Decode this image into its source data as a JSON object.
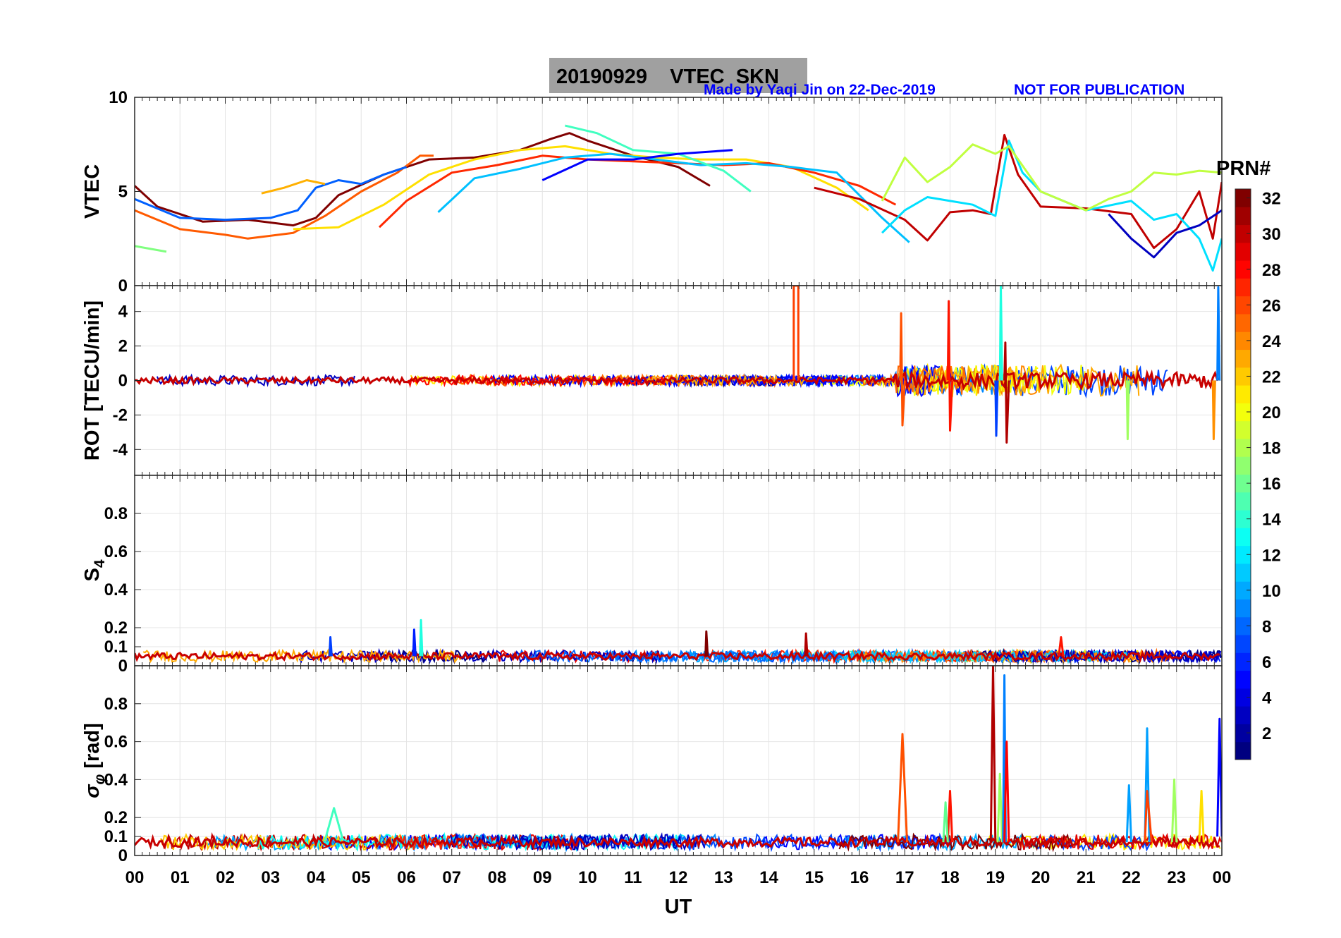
{
  "header": {
    "title": "20190929    VTEC  SKN",
    "credit": "Made by Yaqi Jin on 22-Dec-2019",
    "notice": "NOT FOR PUBLICATION"
  },
  "colorbar": {
    "label": "PRN#",
    "ticks": [
      "2",
      "4",
      "6",
      "8",
      "10",
      "12",
      "14",
      "16",
      "18",
      "20",
      "22",
      "24",
      "26",
      "28",
      "30",
      "32"
    ],
    "range": [
      1,
      32
    ],
    "colormap": "jet"
  },
  "x_axis": {
    "label": "UT",
    "ticks": [
      "00",
      "01",
      "02",
      "03",
      "04",
      "05",
      "06",
      "07",
      "08",
      "09",
      "10",
      "11",
      "12",
      "13",
      "14",
      "15",
      "16",
      "17",
      "18",
      "19",
      "20",
      "21",
      "22",
      "23",
      "00"
    ]
  },
  "chart_data": [
    {
      "type": "line",
      "panel": "vtec",
      "ylabel": "VTEC",
      "ylim": [
        0,
        10
      ],
      "yticks": [
        "0",
        "5",
        "10"
      ],
      "grid": true,
      "x_unit": "hours UT",
      "series": [
        {
          "prn": 32,
          "color": "#800000",
          "x": [
            0,
            0.5,
            1.5,
            2.5,
            3.5,
            4,
            4.5,
            5.5,
            6.5,
            7.5,
            8.5,
            9.2,
            9.6,
            10,
            11,
            12,
            12.7
          ],
          "y": [
            5.3,
            4.2,
            3.4,
            3.5,
            3.2,
            3.6,
            4.8,
            5.9,
            6.7,
            6.8,
            7.2,
            7.8,
            8.1,
            7.7,
            6.9,
            6.3,
            5.3
          ]
        },
        {
          "prn": 24,
          "color": "#ff5a00",
          "x": [
            0,
            1,
            2,
            2.5,
            3.5,
            4.2,
            5,
            5.8,
            6.3,
            6.6
          ],
          "y": [
            4.0,
            3.0,
            2.7,
            2.5,
            2.8,
            3.7,
            5.0,
            6.0,
            6.9,
            6.9
          ]
        },
        {
          "prn": 8,
          "color": "#0060ff",
          "x": [
            0,
            1,
            2,
            3,
            3.6,
            4,
            4.5,
            5,
            5.5,
            6
          ],
          "y": [
            4.6,
            3.6,
            3.5,
            3.6,
            4.0,
            5.2,
            5.6,
            5.4,
            5.9,
            6.3
          ]
        },
        {
          "prn": 17,
          "color": "#80ff80",
          "x": [
            0,
            0.7
          ],
          "y": [
            2.1,
            1.8
          ]
        },
        {
          "prn": 22,
          "color": "#ffb000",
          "x": [
            2.8,
            3.3,
            3.8,
            4.2
          ],
          "y": [
            4.9,
            5.2,
            5.6,
            5.4
          ]
        },
        {
          "prn": 20,
          "color": "#ffe000",
          "x": [
            3.5,
            4.5,
            5.5,
            6.5,
            7.5,
            8.5,
            9.5,
            10.5,
            11.5,
            12.5,
            13.5,
            14.5,
            15.5,
            16.2
          ],
          "y": [
            3.0,
            3.1,
            4.3,
            5.9,
            6.7,
            7.2,
            7.4,
            7.0,
            6.8,
            6.7,
            6.7,
            6.3,
            5.2,
            4.0
          ]
        },
        {
          "prn": 27,
          "color": "#ff2800",
          "x": [
            5.4,
            6,
            7,
            8,
            9,
            10,
            11,
            12,
            13,
            14,
            15,
            16,
            16.8
          ],
          "y": [
            3.1,
            4.5,
            6.0,
            6.4,
            6.9,
            6.7,
            6.6,
            6.5,
            6.4,
            6.5,
            6.0,
            5.3,
            4.3
          ]
        },
        {
          "prn": 11,
          "color": "#00c0ff",
          "x": [
            6.7,
            7.5,
            8.5,
            9.5,
            10.5,
            11.5,
            12.5,
            13.5,
            14.5,
            15.5,
            16.5,
            17.1
          ],
          "y": [
            3.9,
            5.7,
            6.2,
            6.8,
            7.0,
            6.7,
            6.4,
            6.5,
            6.3,
            6.0,
            3.6,
            2.3
          ]
        },
        {
          "prn": 14,
          "color": "#40ffc0",
          "x": [
            9.5,
            10.2,
            11,
            12,
            13,
            13.6
          ],
          "y": [
            8.5,
            8.1,
            7.2,
            7.0,
            6.1,
            5.0
          ]
        },
        {
          "prn": 5,
          "color": "#0000ff",
          "x": [
            9,
            10,
            11,
            12,
            13.2
          ],
          "y": [
            5.6,
            6.7,
            6.7,
            7.0,
            7.2
          ]
        },
        {
          "prn": 30,
          "color": "#c00000",
          "x": [
            15,
            16,
            17,
            17.5,
            18,
            18.5,
            18.9,
            19.2,
            19.5,
            20,
            21,
            22,
            22.5,
            23,
            23.5,
            23.8,
            24
          ],
          "y": [
            5.2,
            4.6,
            3.5,
            2.4,
            3.9,
            4.0,
            3.8,
            8.0,
            5.9,
            4.2,
            4.1,
            3.8,
            2.0,
            3.0,
            5.0,
            2.5,
            5.5
          ]
        },
        {
          "prn": 12,
          "color": "#00e0ff",
          "x": [
            16.5,
            17,
            17.5,
            18,
            18.5,
            19,
            19.3,
            19.6,
            20,
            21,
            22,
            22.5,
            23,
            23.5,
            23.8,
            24
          ],
          "y": [
            2.8,
            4.0,
            4.7,
            4.5,
            4.3,
            3.7,
            7.7,
            6.0,
            5.0,
            4.0,
            4.5,
            3.5,
            3.8,
            2.5,
            0.8,
            2.5
          ]
        },
        {
          "prn": 19,
          "color": "#c0ff40",
          "x": [
            16.5,
            17,
            17.5,
            18,
            18.5,
            19,
            19.3,
            20,
            20.5,
            21,
            21.5,
            22,
            22.5,
            23,
            23.5,
            24
          ],
          "y": [
            4.5,
            6.8,
            5.5,
            6.3,
            7.5,
            7.0,
            7.4,
            5.0,
            4.5,
            4.0,
            4.6,
            5.0,
            6.0,
            5.9,
            6.1,
            6.0
          ]
        },
        {
          "prn": 3,
          "color": "#0000c0",
          "x": [
            21.5,
            22,
            22.5,
            23,
            23.5,
            24
          ],
          "y": [
            3.8,
            2.5,
            1.5,
            2.8,
            3.2,
            4.0
          ]
        }
      ]
    },
    {
      "type": "line",
      "panel": "rot",
      "ylabel": "ROT [TECU/min]",
      "ylim": [
        -5.5,
        5.5
      ],
      "yticks": [
        "-4",
        "-2",
        "0",
        "2",
        "4"
      ],
      "grid": true,
      "x_unit": "hours UT",
      "baseline": 0,
      "quiet_noise_amplitude": 0.3,
      "active_interval": [
        16.8,
        24
      ],
      "series": [
        {
          "prn": 26,
          "color": "#ff4000",
          "x": [
            14.55,
            14.55,
            14.65,
            14.65
          ],
          "y": [
            0,
            5.5,
            5.5,
            0
          ]
        },
        {
          "prn": 25,
          "color": "#ff5000",
          "x": [
            16.9,
            16.92,
            16.95,
            17.0
          ],
          "y": [
            0,
            3.9,
            -2.6,
            0
          ]
        },
        {
          "prn": 28,
          "color": "#ff1400",
          "x": [
            17.95,
            17.97,
            18.0,
            18.05
          ],
          "y": [
            0,
            4.6,
            -2.9,
            0
          ]
        },
        {
          "prn": 13,
          "color": "#20ffe0",
          "x": [
            19.1,
            19.12,
            19.15
          ],
          "y": [
            0,
            5.5,
            0
          ]
        },
        {
          "prn": 7,
          "color": "#0040ff",
          "x": [
            19.0,
            19.02,
            19.05
          ],
          "y": [
            0,
            -3.2,
            0
          ]
        },
        {
          "prn": 31,
          "color": "#b00000",
          "x": [
            19.2,
            19.22,
            19.25,
            19.3
          ],
          "y": [
            0,
            2.2,
            -3.6,
            0
          ]
        },
        {
          "prn": 18,
          "color": "#a0ff60",
          "x": [
            21.9,
            21.92,
            21.95
          ],
          "y": [
            0,
            -3.4,
            0
          ]
        },
        {
          "prn": 9,
          "color": "#0080ff",
          "x": [
            23.9,
            23.92,
            23.95
          ],
          "y": [
            0,
            5.4,
            0
          ]
        },
        {
          "prn": 23,
          "color": "#ff9000",
          "x": [
            23.8,
            23.82,
            23.85
          ],
          "y": [
            0,
            -3.4,
            0
          ]
        }
      ]
    },
    {
      "type": "line",
      "panel": "s4",
      "ylabel": "S4",
      "ylim": [
        0,
        1
      ],
      "yticks": [
        "0",
        "0.1",
        "0.2",
        "0.4",
        "0.6",
        "0.8"
      ],
      "grid": true,
      "x_unit": "hours UT",
      "baseline": 0.05,
      "quiet_noise_amplitude": 0.03,
      "series": [
        {
          "prn": 7,
          "color": "#0040ff",
          "x": [
            4.3,
            4.32,
            4.35
          ],
          "y": [
            0.05,
            0.15,
            0.05
          ]
        },
        {
          "prn": 6,
          "color": "#0020ff",
          "x": [
            6.15,
            6.17,
            6.2
          ],
          "y": [
            0.05,
            0.19,
            0.05
          ]
        },
        {
          "prn": 13,
          "color": "#20ffe0",
          "x": [
            6.3,
            6.32,
            6.35
          ],
          "y": [
            0.05,
            0.24,
            0.05
          ]
        },
        {
          "prn": 32,
          "color": "#800000",
          "x": [
            12.6,
            12.62,
            12.65
          ],
          "y": [
            0.05,
            0.18,
            0.05
          ]
        },
        {
          "prn": 31,
          "color": "#b00000",
          "x": [
            14.8,
            14.82,
            14.85
          ],
          "y": [
            0.05,
            0.17,
            0.05
          ]
        },
        {
          "prn": 28,
          "color": "#ff1400",
          "x": [
            20.4,
            20.45,
            20.5
          ],
          "y": [
            0.05,
            0.15,
            0.05
          ]
        }
      ]
    },
    {
      "type": "line",
      "panel": "sigma_phi",
      "ylabel": "σ_φ [rad]",
      "ylim": [
        0,
        1
      ],
      "yticks": [
        "0",
        "0.1",
        "0.2",
        "0.4",
        "0.6",
        "0.8"
      ],
      "grid": true,
      "x_unit": "hours UT",
      "baseline": 0.07,
      "quiet_noise_amplitude": 0.04,
      "series": [
        {
          "prn": 14,
          "color": "#40ffc0",
          "x": [
            4.2,
            4.4,
            4.6
          ],
          "y": [
            0.08,
            0.25,
            0.08
          ]
        },
        {
          "prn": 25,
          "color": "#ff5000",
          "x": [
            16.85,
            16.95,
            17.05
          ],
          "y": [
            0.07,
            0.64,
            0.07
          ]
        },
        {
          "prn": 28,
          "color": "#ff1400",
          "x": [
            17.95,
            18.0,
            18.05
          ],
          "y": [
            0.07,
            0.34,
            0.07
          ]
        },
        {
          "prn": 16,
          "color": "#60ff90",
          "x": [
            17.85,
            17.9,
            17.95
          ],
          "y": [
            0.07,
            0.28,
            0.07
          ]
        },
        {
          "prn": 31,
          "color": "#b00000",
          "x": [
            18.9,
            18.95,
            19.0
          ],
          "y": [
            0.07,
            1.0,
            0.07
          ]
        },
        {
          "prn": 18,
          "color": "#a0ff60",
          "x": [
            19.05,
            19.1,
            19.15
          ],
          "y": [
            0.07,
            0.43,
            0.07
          ]
        },
        {
          "prn": 9,
          "color": "#0080ff",
          "x": [
            19.17,
            19.2,
            19.23
          ],
          "y": [
            0.07,
            0.95,
            0.07
          ]
        },
        {
          "prn": 28,
          "color": "#ff0000",
          "x": [
            19.2,
            19.25,
            19.3
          ],
          "y": [
            0.07,
            0.6,
            0.07
          ]
        },
        {
          "prn": 10,
          "color": "#00a0ff",
          "x": [
            21.9,
            21.95,
            22.0
          ],
          "y": [
            0.07,
            0.37,
            0.07
          ]
        },
        {
          "prn": 10,
          "color": "#00a0ff",
          "x": [
            22.3,
            22.35,
            22.4
          ],
          "y": [
            0.07,
            0.67,
            0.07
          ]
        },
        {
          "prn": 26,
          "color": "#ff4000",
          "x": [
            22.3,
            22.35,
            22.45
          ],
          "y": [
            0.07,
            0.34,
            0.07
          ]
        },
        {
          "prn": 18,
          "color": "#a0ff60",
          "x": [
            22.9,
            22.95,
            23.0
          ],
          "y": [
            0.07,
            0.4,
            0.07
          ]
        },
        {
          "prn": 20,
          "color": "#ffe000",
          "x": [
            23.5,
            23.55,
            23.6
          ],
          "y": [
            0.07,
            0.34,
            0.07
          ]
        },
        {
          "prn": 5,
          "color": "#0000ff",
          "x": [
            23.9,
            23.95,
            24.0
          ],
          "y": [
            0.1,
            0.72,
            0.1
          ]
        }
      ]
    }
  ]
}
